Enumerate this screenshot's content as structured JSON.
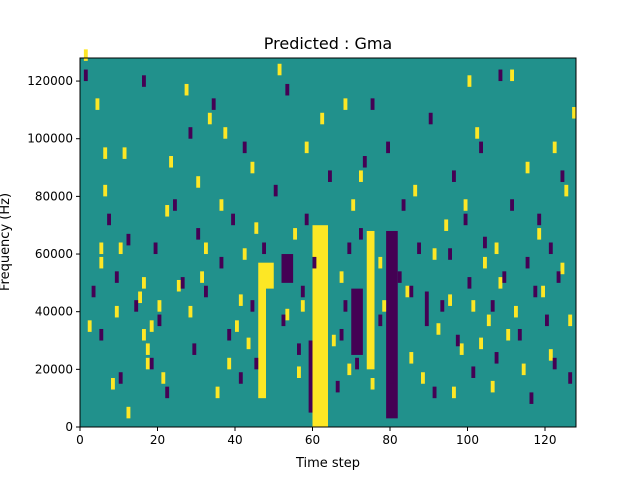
{
  "chart_data": {
    "type": "heatmap",
    "title": "Predicted : Gma",
    "xlabel": "Time step",
    "ylabel": "Frequency (Hz)",
    "xlim": [
      0,
      128
    ],
    "ylim": [
      0,
      128000
    ],
    "x_ticks": [
      0,
      20,
      40,
      60,
      80,
      100,
      120
    ],
    "x_tick_labels": [
      "0",
      "20",
      "40",
      "60",
      "80",
      "100",
      "120"
    ],
    "y_ticks": [
      0,
      20000,
      40000,
      60000,
      80000,
      100000,
      120000
    ],
    "y_tick_labels": [
      "0",
      "20000",
      "40000",
      "60000",
      "80000",
      "100000",
      "120000"
    ],
    "n_time_steps": 128,
    "n_frequency_bins": 128,
    "bin_hz": 1000,
    "colormap": {
      "background": "#21918c",
      "high": "#fde725",
      "low": "#440154"
    },
    "high_bands": [
      {
        "t0": 60,
        "t1": 64,
        "f0": 0,
        "f1": 70000
      },
      {
        "t0": 46,
        "t1": 48,
        "f0": 10000,
        "f1": 57000
      },
      {
        "t0": 74,
        "t1": 76,
        "f0": 20000,
        "f1": 68000
      },
      {
        "t0": 48,
        "t1": 50,
        "f0": 48000,
        "f1": 57000
      }
    ],
    "low_bands": [
      {
        "t0": 79,
        "t1": 82,
        "f0": 3000,
        "f1": 68000
      },
      {
        "t0": 70,
        "t1": 73,
        "f0": 25000,
        "f1": 48000
      },
      {
        "t0": 52,
        "t1": 55,
        "f0": 50000,
        "f1": 60000
      },
      {
        "t0": 59,
        "t1": 60,
        "f0": 5000,
        "f1": 30000
      },
      {
        "t0": 89,
        "t1": 90,
        "f0": 35000,
        "f1": 47000
      }
    ],
    "high_cells": [
      [
        1,
        127
      ],
      [
        2,
        33
      ],
      [
        4,
        110
      ],
      [
        5,
        55
      ],
      [
        5,
        60
      ],
      [
        6,
        93
      ],
      [
        6,
        80
      ],
      [
        8,
        13
      ],
      [
        9,
        38
      ],
      [
        10,
        60
      ],
      [
        11,
        93
      ],
      [
        12,
        3
      ],
      [
        15,
        43
      ],
      [
        16,
        48
      ],
      [
        16,
        30
      ],
      [
        17,
        20
      ],
      [
        17,
        25
      ],
      [
        18,
        33
      ],
      [
        20,
        40
      ],
      [
        21,
        15
      ],
      [
        22,
        73
      ],
      [
        23,
        90
      ],
      [
        25,
        47
      ],
      [
        27,
        115
      ],
      [
        28,
        38
      ],
      [
        30,
        83
      ],
      [
        31,
        50
      ],
      [
        32,
        60
      ],
      [
        33,
        105
      ],
      [
        35,
        10
      ],
      [
        36,
        75
      ],
      [
        37,
        100
      ],
      [
        38,
        20
      ],
      [
        40,
        33
      ],
      [
        41,
        42
      ],
      [
        42,
        58
      ],
      [
        43,
        27
      ],
      [
        44,
        88
      ],
      [
        45,
        67
      ],
      [
        51,
        122
      ],
      [
        53,
        37
      ],
      [
        55,
        65
      ],
      [
        56,
        17
      ],
      [
        57,
        40
      ],
      [
        58,
        95
      ],
      [
        62,
        105
      ],
      [
        65,
        28
      ],
      [
        67,
        50
      ],
      [
        68,
        110
      ],
      [
        69,
        18
      ],
      [
        70,
        75
      ],
      [
        72,
        85
      ],
      [
        75,
        13
      ],
      [
        77,
        55
      ],
      [
        78,
        40
      ],
      [
        84,
        45
      ],
      [
        85,
        22
      ],
      [
        86,
        80
      ],
      [
        88,
        15
      ],
      [
        91,
        58
      ],
      [
        92,
        32
      ],
      [
        94,
        68
      ],
      [
        95,
        42
      ],
      [
        96,
        10
      ],
      [
        98,
        25
      ],
      [
        99,
        75
      ],
      [
        100,
        118
      ],
      [
        101,
        40
      ],
      [
        102,
        100
      ],
      [
        103,
        27
      ],
      [
        104,
        55
      ],
      [
        105,
        35
      ],
      [
        106,
        12
      ],
      [
        107,
        60
      ],
      [
        108,
        48
      ],
      [
        110,
        30
      ],
      [
        111,
        120
      ],
      [
        112,
        38
      ],
      [
        114,
        18
      ],
      [
        115,
        88
      ],
      [
        118,
        65
      ],
      [
        119,
        45
      ],
      [
        121,
        23
      ],
      [
        122,
        95
      ],
      [
        124,
        53
      ],
      [
        125,
        80
      ],
      [
        126,
        35
      ],
      [
        127,
        107
      ]
    ],
    "low_cells": [
      [
        1,
        120
      ],
      [
        3,
        45
      ],
      [
        5,
        30
      ],
      [
        7,
        70
      ],
      [
        9,
        50
      ],
      [
        10,
        15
      ],
      [
        12,
        63
      ],
      [
        14,
        40
      ],
      [
        16,
        118
      ],
      [
        18,
        20
      ],
      [
        19,
        60
      ],
      [
        20,
        35
      ],
      [
        22,
        10
      ],
      [
        24,
        75
      ],
      [
        26,
        48
      ],
      [
        28,
        100
      ],
      [
        29,
        25
      ],
      [
        30,
        65
      ],
      [
        32,
        45
      ],
      [
        34,
        110
      ],
      [
        36,
        55
      ],
      [
        38,
        30
      ],
      [
        39,
        70
      ],
      [
        41,
        15
      ],
      [
        42,
        95
      ],
      [
        44,
        40
      ],
      [
        45,
        20
      ],
      [
        47,
        60
      ],
      [
        50,
        80
      ],
      [
        52,
        35
      ],
      [
        53,
        115
      ],
      [
        56,
        25
      ],
      [
        57,
        45
      ],
      [
        58,
        70
      ],
      [
        60,
        55
      ],
      [
        64,
        85
      ],
      [
        66,
        12
      ],
      [
        67,
        30
      ],
      [
        68,
        40
      ],
      [
        69,
        60
      ],
      [
        71,
        20
      ],
      [
        72,
        65
      ],
      [
        73,
        90
      ],
      [
        75,
        110
      ],
      [
        77,
        35
      ],
      [
        79,
        95
      ],
      [
        80,
        15
      ],
      [
        82,
        50
      ],
      [
        83,
        75
      ],
      [
        85,
        45
      ],
      [
        87,
        60
      ],
      [
        90,
        105
      ],
      [
        91,
        10
      ],
      [
        93,
        40
      ],
      [
        95,
        58
      ],
      [
        96,
        85
      ],
      [
        97,
        28
      ],
      [
        99,
        70
      ],
      [
        100,
        48
      ],
      [
        101,
        17
      ],
      [
        103,
        95
      ],
      [
        104,
        62
      ],
      [
        106,
        40
      ],
      [
        107,
        22
      ],
      [
        108,
        120
      ],
      [
        109,
        50
      ],
      [
        111,
        75
      ],
      [
        113,
        30
      ],
      [
        115,
        55
      ],
      [
        116,
        8
      ],
      [
        117,
        45
      ],
      [
        118,
        70
      ],
      [
        120,
        35
      ],
      [
        121,
        60
      ],
      [
        122,
        20
      ],
      [
        123,
        50
      ],
      [
        124,
        85
      ],
      [
        126,
        15
      ]
    ]
  }
}
